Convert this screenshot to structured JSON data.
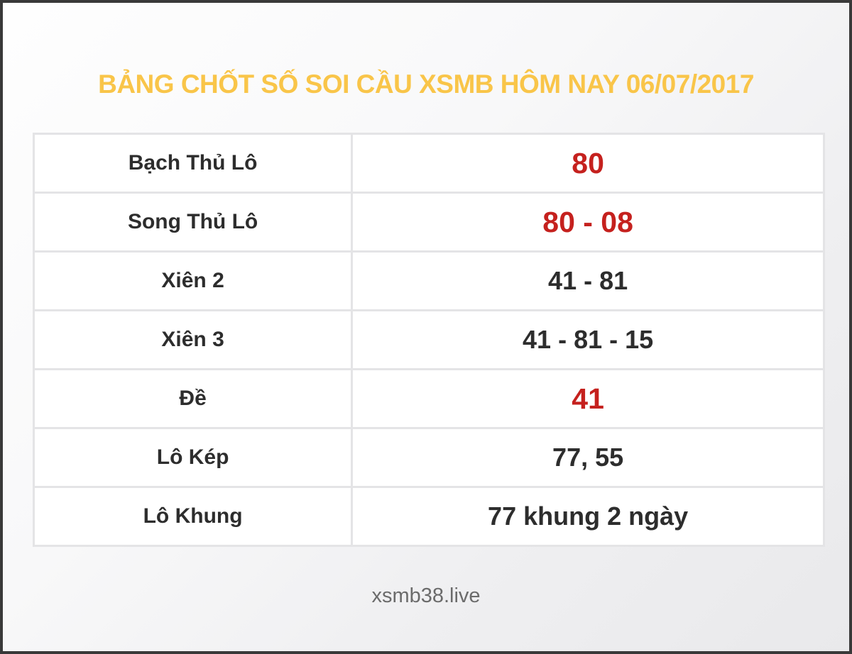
{
  "page": {
    "title": "BẢNG CHỐT SỐ SOI CẦU XSMB HÔM NAY 06/07/2017",
    "footer": "xsmb38.live"
  },
  "colors": {
    "title": "#f9c549",
    "highlight_red": "#c5211e",
    "text_dark": "#2d2d2d",
    "table_border": "#e4e4e6",
    "frame_border": "#393939",
    "footer_text": "#6b6b6b"
  },
  "table": {
    "rows": [
      {
        "label": "Bạch Thủ Lô",
        "value": "80",
        "highlight": true
      },
      {
        "label": "Song Thủ Lô",
        "value": "80 - 08",
        "highlight": true
      },
      {
        "label": "Xiên 2",
        "value": "41 - 81",
        "highlight": false
      },
      {
        "label": "Xiên 3",
        "value": "41 - 81 - 15",
        "highlight": false
      },
      {
        "label": "Đề",
        "value": "41",
        "highlight": true
      },
      {
        "label": "Lô Kép",
        "value": "77, 55",
        "highlight": false
      },
      {
        "label": "Lô Khung",
        "value": "77 khung 2 ngày",
        "highlight": false
      }
    ]
  }
}
